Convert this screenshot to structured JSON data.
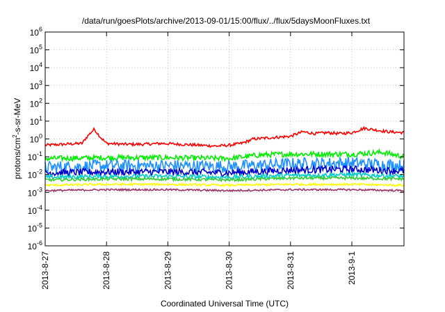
{
  "chart_data": {
    "type": "line",
    "title": "/data/run/goesPlots/archive/2013-09-01/15:00/flux/../flux/5daysMoonFluxes.txt",
    "xlabel": "Coordinated Universal Time (UTC)",
    "ylabel_parts": {
      "pre": "protons/cm",
      "sup": "2",
      "post": "-s-sr-MeV"
    },
    "x_ticks": [
      "2013-8-27",
      "2013-8-28",
      "2013-8-29",
      "2013-8-30",
      "2013-8-31",
      "2013-9-1"
    ],
    "x_range_days": [
      0,
      5.85
    ],
    "y_scale": "log",
    "y_ticks": [
      {
        "base": "10",
        "exp": "-6"
      },
      {
        "base": "10",
        "exp": "-5"
      },
      {
        "base": "10",
        "exp": "-4"
      },
      {
        "base": "10",
        "exp": "-3"
      },
      {
        "base": "10",
        "exp": "-2"
      },
      {
        "base": "10",
        "exp": "-1"
      },
      {
        "base": "10",
        "exp": "0"
      },
      {
        "base": "10",
        "exp": "1"
      },
      {
        "base": "10",
        "exp": "2"
      },
      {
        "base": "10",
        "exp": "3"
      },
      {
        "base": "10",
        "exp": "4"
      },
      {
        "base": "10",
        "exp": "5"
      },
      {
        "base": "10",
        "exp": "6"
      }
    ],
    "y_range_log10": [
      -6,
      6
    ],
    "grid": true,
    "series": [
      {
        "color": "#ff0000",
        "points": [
          [
            0,
            -0.35
          ],
          [
            0.3,
            -0.3
          ],
          [
            0.6,
            -0.25
          ],
          [
            0.7,
            0.2
          ],
          [
            0.8,
            0.55
          ],
          [
            0.9,
            0.1
          ],
          [
            1.0,
            -0.25
          ],
          [
            1.3,
            -0.3
          ],
          [
            1.6,
            -0.3
          ],
          [
            1.9,
            -0.25
          ],
          [
            2.2,
            -0.3
          ],
          [
            2.5,
            -0.35
          ],
          [
            2.8,
            -0.4
          ],
          [
            3.0,
            -0.35
          ],
          [
            3.2,
            -0.25
          ],
          [
            3.4,
            0.0
          ],
          [
            3.6,
            0.05
          ],
          [
            3.8,
            0.1
          ],
          [
            4.0,
            0.15
          ],
          [
            4.2,
            0.4
          ],
          [
            4.4,
            0.3
          ],
          [
            4.6,
            0.35
          ],
          [
            4.8,
            0.3
          ],
          [
            5.0,
            0.35
          ],
          [
            5.2,
            0.6
          ],
          [
            5.4,
            0.5
          ],
          [
            5.6,
            0.4
          ],
          [
            5.85,
            0.35
          ]
        ],
        "jitter": 0.08
      },
      {
        "color": "#00ee00",
        "points": [
          [
            0,
            -1.1
          ],
          [
            1,
            -1.05
          ],
          [
            2,
            -1.05
          ],
          [
            3,
            -1.1
          ],
          [
            3.5,
            -0.9
          ],
          [
            4,
            -0.85
          ],
          [
            4.5,
            -0.85
          ],
          [
            5,
            -0.85
          ],
          [
            5.5,
            -0.75
          ],
          [
            5.85,
            -1.0
          ]
        ],
        "jitter": 0.15
      },
      {
        "color": "#1e90ff",
        "points": [
          [
            0,
            -1.6
          ],
          [
            1,
            -1.5
          ],
          [
            2,
            -1.5
          ],
          [
            3,
            -1.55
          ],
          [
            4,
            -1.4
          ],
          [
            5,
            -1.35
          ],
          [
            5.85,
            -1.5
          ]
        ],
        "jitter": 0.35
      },
      {
        "color": "#0000cc",
        "points": [
          [
            0,
            -1.9
          ],
          [
            1,
            -1.85
          ],
          [
            2,
            -1.85
          ],
          [
            3,
            -1.9
          ],
          [
            4,
            -1.75
          ],
          [
            5,
            -1.7
          ],
          [
            5.85,
            -1.8
          ]
        ],
        "jitter": 0.2
      },
      {
        "color": "#00cccc",
        "points": [
          [
            0,
            -2.15
          ],
          [
            1,
            -2.1
          ],
          [
            2,
            -2.1
          ],
          [
            3,
            -2.15
          ],
          [
            4,
            -2.05
          ],
          [
            5,
            -2.0
          ],
          [
            5.85,
            -2.1
          ]
        ],
        "jitter": 0.12
      },
      {
        "color": "#33cc33",
        "points": [
          [
            0,
            -2.3
          ],
          [
            1,
            -2.25
          ],
          [
            2,
            -2.25
          ],
          [
            3,
            -2.3
          ],
          [
            4,
            -2.2
          ],
          [
            5,
            -2.2
          ],
          [
            5.85,
            -2.25
          ]
        ],
        "jitter": 0.08
      },
      {
        "color": "#ffff00",
        "points": [
          [
            0,
            -2.6
          ],
          [
            1,
            -2.55
          ],
          [
            2,
            -2.55
          ],
          [
            3,
            -2.6
          ],
          [
            4,
            -2.55
          ],
          [
            5,
            -2.55
          ],
          [
            5.85,
            -2.6
          ]
        ],
        "jitter": 0.06
      },
      {
        "color": "#993366",
        "points": [
          [
            0,
            -2.9
          ],
          [
            1,
            -2.85
          ],
          [
            2,
            -2.85
          ],
          [
            3,
            -2.9
          ],
          [
            4,
            -2.85
          ],
          [
            5,
            -2.85
          ],
          [
            5.85,
            -2.9
          ]
        ],
        "jitter": 0.05
      }
    ]
  }
}
